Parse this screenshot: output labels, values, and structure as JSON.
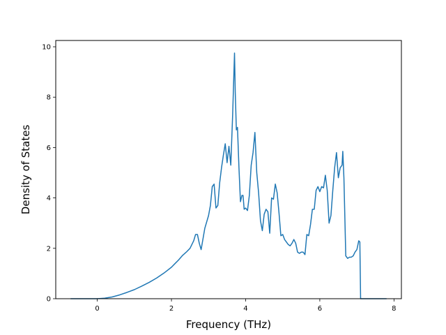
{
  "chart_data": {
    "type": "line",
    "title": "",
    "xlabel": "Frequency (THz)",
    "ylabel": "Density of States",
    "xlim": [
      -1.12,
      8.2
    ],
    "ylim": [
      0,
      10.25
    ],
    "xticks": [
      0,
      2,
      4,
      6,
      8
    ],
    "yticks": [
      0,
      2,
      4,
      6,
      8,
      10
    ],
    "grid": false,
    "legend": "none",
    "color": "#1f77b4",
    "series": [
      {
        "x": [
          -0.72,
          0.0,
          0.2,
          0.4,
          0.6,
          0.8,
          1.0,
          1.2,
          1.4,
          1.6,
          1.8,
          2.0,
          2.1,
          2.2,
          2.3,
          2.4,
          2.5,
          2.6,
          2.65,
          2.7,
          2.75,
          2.8,
          2.9,
          3.0,
          3.05,
          3.1,
          3.15,
          3.2,
          3.25,
          3.3,
          3.35,
          3.4,
          3.45,
          3.5,
          3.55,
          3.6,
          3.65,
          3.7,
          3.72,
          3.75,
          3.78,
          3.82,
          3.86,
          3.9,
          3.93,
          3.96,
          4.0,
          4.05,
          4.1,
          4.15,
          4.2,
          4.25,
          4.3,
          4.35,
          4.4,
          4.45,
          4.5,
          4.55,
          4.6,
          4.65,
          4.7,
          4.75,
          4.8,
          4.85,
          4.9,
          4.95,
          5.0,
          5.05,
          5.1,
          5.15,
          5.2,
          5.25,
          5.3,
          5.35,
          5.4,
          5.45,
          5.5,
          5.55,
          5.6,
          5.65,
          5.7,
          5.75,
          5.8,
          5.85,
          5.9,
          5.95,
          6.0,
          6.05,
          6.1,
          6.15,
          6.2,
          6.25,
          6.3,
          6.35,
          6.4,
          6.45,
          6.5,
          6.55,
          6.6,
          6.62,
          6.65,
          6.7,
          6.75,
          6.8,
          6.85,
          6.9,
          6.95,
          7.0,
          7.05,
          7.08,
          7.1,
          7.3,
          7.8
        ],
        "y": [
          0.0,
          0.0,
          0.02,
          0.07,
          0.15,
          0.25,
          0.36,
          0.5,
          0.65,
          0.82,
          1.02,
          1.25,
          1.4,
          1.55,
          1.72,
          1.85,
          2.0,
          2.3,
          2.55,
          2.55,
          2.2,
          1.95,
          2.8,
          3.3,
          3.7,
          4.45,
          4.55,
          3.6,
          3.7,
          4.6,
          5.2,
          5.7,
          6.15,
          5.4,
          6.05,
          5.3,
          7.3,
          9.75,
          8.2,
          6.7,
          6.8,
          5.2,
          3.85,
          4.1,
          4.1,
          3.55,
          3.6,
          3.5,
          4.1,
          5.3,
          5.8,
          6.6,
          5.0,
          4.2,
          3.1,
          2.7,
          3.35,
          3.55,
          3.45,
          2.6,
          4.0,
          3.95,
          4.55,
          4.2,
          3.4,
          2.5,
          2.55,
          2.35,
          2.25,
          2.15,
          2.1,
          2.2,
          2.35,
          2.2,
          1.85,
          1.8,
          1.85,
          1.85,
          1.75,
          2.55,
          2.5,
          2.95,
          3.55,
          3.55,
          4.3,
          4.45,
          4.25,
          4.45,
          4.4,
          4.9,
          4.3,
          3.0,
          3.3,
          4.3,
          5.2,
          5.8,
          4.8,
          5.2,
          5.3,
          5.85,
          4.8,
          1.7,
          1.6,
          1.65,
          1.65,
          1.7,
          1.85,
          1.95,
          2.3,
          2.25,
          0.0,
          0.0,
          0.0
        ]
      }
    ]
  }
}
